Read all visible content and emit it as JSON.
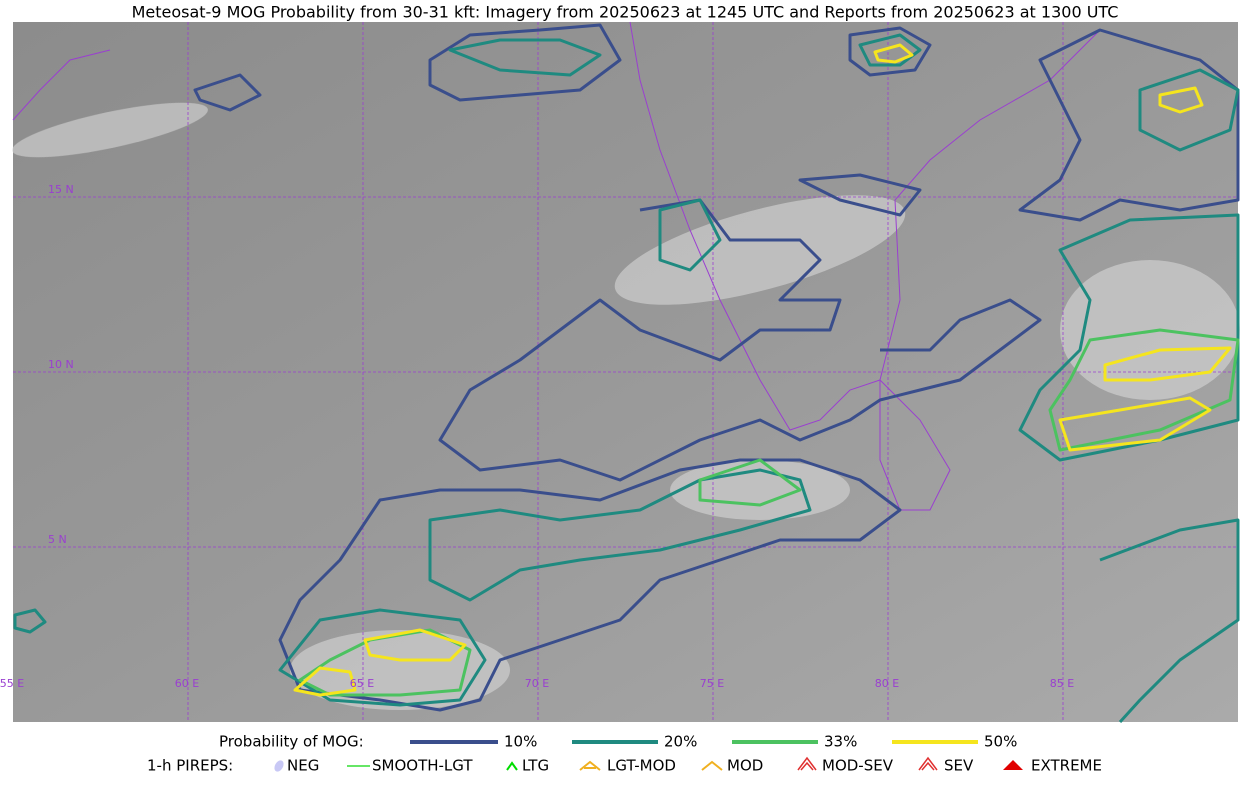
{
  "title": "Meteosat-9 MOG Probability from 30-31 kft: Imagery from 20250623 at 1245 UTC and Reports from 20250623 at 1300 UTC",
  "grid_labels": {
    "lat": [
      "15 N",
      "10 N",
      "5 N"
    ],
    "lon": [
      "55 E",
      "60 E",
      "65 E",
      "70 E",
      "75 E",
      "80 E",
      "85 E"
    ]
  },
  "legend": {
    "label": "Probability of MOG:",
    "levels": [
      {
        "label": "10%",
        "color": "#3a4e8c"
      },
      {
        "label": "20%",
        "color": "#1f8a80"
      },
      {
        "label": "33%",
        "color": "#4cc260"
      },
      {
        "label": "50%",
        "color": "#f5e51e"
      }
    ]
  },
  "pireps": {
    "label": "1-h PIREPS:",
    "items": [
      "NEG",
      "SMOOTH-LGT",
      "LTG",
      "LGT-MOD",
      "MOD",
      "MOD-SEV",
      "SEV",
      "EXTREME"
    ]
  }
}
